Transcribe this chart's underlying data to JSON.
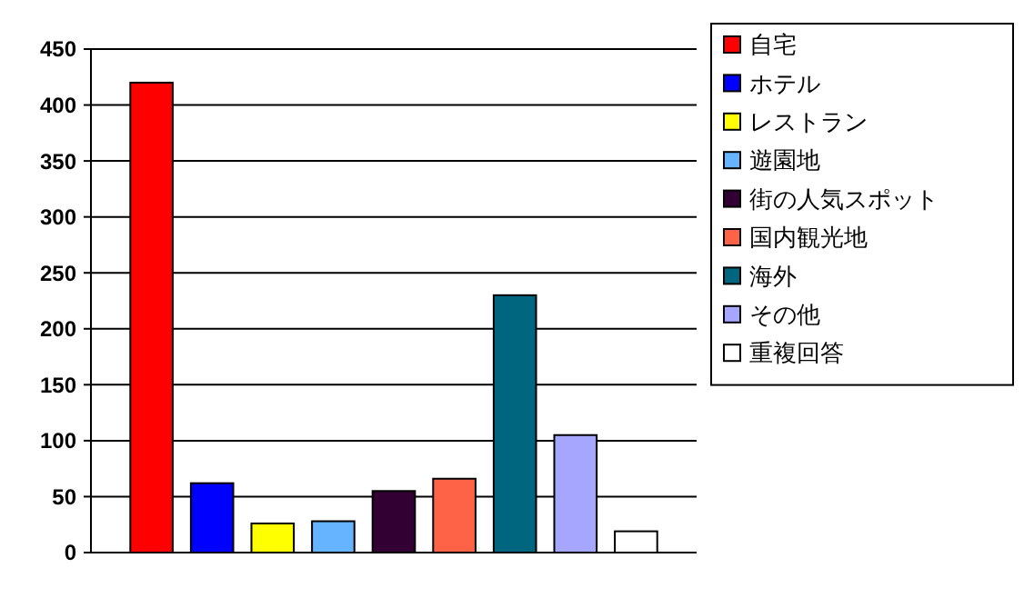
{
  "chart_data": {
    "type": "bar",
    "categories": [
      null
    ],
    "series": [
      {
        "name": "自宅",
        "color": "#ff0000",
        "values": [
          420
        ]
      },
      {
        "name": "ホテル",
        "color": "#0000ff",
        "values": [
          62
        ]
      },
      {
        "name": "レストラン",
        "color": "#ffff00",
        "values": [
          26
        ]
      },
      {
        "name": "遊園地",
        "color": "#66b3ff",
        "values": [
          28
        ]
      },
      {
        "name": "街の人気スポット",
        "color": "#330033",
        "values": [
          55
        ]
      },
      {
        "name": "国内観光地",
        "color": "#ff6347",
        "values": [
          66
        ]
      },
      {
        "name": "海外",
        "color": "#006680",
        "values": [
          230
        ]
      },
      {
        "name": "その他",
        "color": "#a6a6ff",
        "values": [
          105
        ]
      },
      {
        "name": "重複回答",
        "color": "#ffffff",
        "values": [
          19
        ]
      }
    ],
    "ylim": [
      0,
      450
    ],
    "yticks": [
      0,
      50,
      100,
      150,
      200,
      250,
      300,
      350,
      400,
      450
    ],
    "grid": "y",
    "legend": "right",
    "tick_labels": "y"
  }
}
